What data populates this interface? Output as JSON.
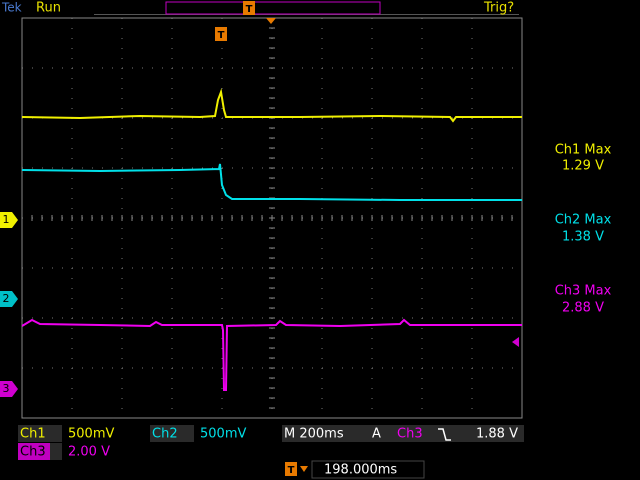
{
  "header": {
    "logo": "Tek",
    "status": "Run",
    "trigger_status": "Trig?",
    "trigger_marker": "T"
  },
  "screen": {
    "trigger_marker": "T",
    "channel_markers": [
      "1",
      "2",
      "3"
    ]
  },
  "measurements": [
    {
      "label": "Ch1 Max",
      "value": "1.29 V"
    },
    {
      "label": "Ch2 Max",
      "value": "1.38 V"
    },
    {
      "label": "Ch3 Max",
      "value": "2.88 V"
    }
  ],
  "footer": {
    "ch1_label": "Ch1",
    "ch1_scale": "500mV",
    "ch2_label": "Ch2",
    "ch2_scale": "500mV",
    "timebase": "M 200ms",
    "trigger_mode": "A",
    "trigger_source": "Ch3",
    "trigger_level": "1.88 V",
    "ch3_label": "Ch3",
    "ch3_scale": "2.00 V",
    "position_marker": "T",
    "position": "198.000ms"
  }
}
